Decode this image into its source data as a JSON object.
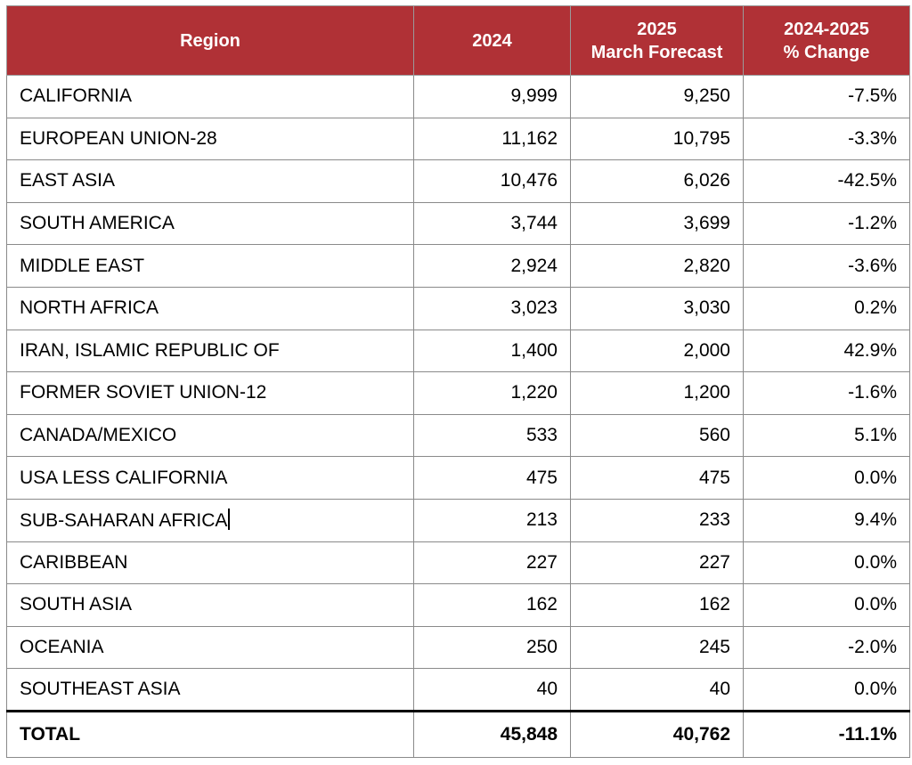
{
  "table": {
    "headers": {
      "region": "Region",
      "y2024": "2024",
      "y2025_line1": "2025",
      "y2025_line2": "March Forecast",
      "change_line1": "2024-2025",
      "change_line2": "% Change"
    },
    "rows": [
      {
        "region": "CALIFORNIA",
        "y2024": "9,999",
        "y2025": "9,250",
        "change": "-7.5%"
      },
      {
        "region": "EUROPEAN UNION-28",
        "y2024": "11,162",
        "y2025": "10,795",
        "change": "-3.3%"
      },
      {
        "region": "EAST ASIA",
        "y2024": "10,476",
        "y2025": "6,026",
        "change": "-42.5%"
      },
      {
        "region": "SOUTH AMERICA",
        "y2024": "3,744",
        "y2025": "3,699",
        "change": "-1.2%"
      },
      {
        "region": "MIDDLE EAST",
        "y2024": "2,924",
        "y2025": "2,820",
        "change": "-3.6%"
      },
      {
        "region": "NORTH AFRICA",
        "y2024": "3,023",
        "y2025": "3,030",
        "change": "0.2%"
      },
      {
        "region": "IRAN, ISLAMIC REPUBLIC OF",
        "y2024": "1,400",
        "y2025": "2,000",
        "change": "42.9%"
      },
      {
        "region": "FORMER SOVIET UNION-12",
        "y2024": "1,220",
        "y2025": "1,200",
        "change": "-1.6%"
      },
      {
        "region": "CANADA/MEXICO",
        "y2024": "533",
        "y2025": "560",
        "change": "5.1%"
      },
      {
        "region": "USA LESS CALIFORNIA",
        "y2024": "475",
        "y2025": "475",
        "change": "0.0%"
      },
      {
        "region": "SUB-SAHARAN AFRICA",
        "y2024": "213",
        "y2025": "233",
        "change": "9.4%"
      },
      {
        "region": "CARIBBEAN",
        "y2024": "227",
        "y2025": "227",
        "change": "0.0%"
      },
      {
        "region": "SOUTH ASIA",
        "y2024": "162",
        "y2025": "162",
        "change": "0.0%"
      },
      {
        "region": "OCEANIA",
        "y2024": "250",
        "y2025": "245",
        "change": "-2.0%"
      },
      {
        "region": "SOUTHEAST ASIA",
        "y2024": "40",
        "y2025": "40",
        "change": "0.0%"
      }
    ],
    "total": {
      "region": "TOTAL",
      "y2024": "45,848",
      "y2025": "40,762",
      "change": "-11.1%"
    },
    "text_cursor_row": 10
  },
  "colors": {
    "header_bg": "#b03136",
    "header_text": "#ffffff"
  }
}
